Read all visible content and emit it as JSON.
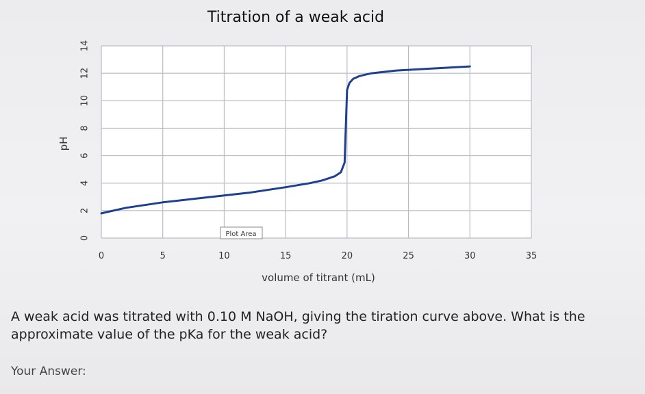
{
  "chart_data": {
    "type": "line",
    "title": "Titration of a weak acid",
    "xlabel": "volume of titrant (mL)",
    "ylabel": "pH",
    "xlim": [
      0,
      35
    ],
    "ylim": [
      0,
      14
    ],
    "xticks": [
      "0",
      "5",
      "10",
      "15",
      "20",
      "25",
      "30",
      "35"
    ],
    "yticks": [
      "0",
      "2",
      "4",
      "6",
      "8",
      "10",
      "12",
      "14"
    ],
    "grid": true,
    "series_color": "#1f3f8f",
    "plot_area_label": "Plot Area",
    "x": [
      0,
      2,
      5,
      8,
      10,
      12,
      15,
      17,
      18,
      19,
      19.5,
      19.8,
      20,
      20.2,
      20.5,
      21,
      22,
      24,
      26,
      28,
      30
    ],
    "y": [
      1.8,
      2.2,
      2.6,
      2.9,
      3.1,
      3.3,
      3.7,
      4.0,
      4.2,
      4.5,
      4.8,
      5.5,
      10.8,
      11.3,
      11.6,
      11.8,
      12.0,
      12.2,
      12.3,
      12.4,
      12.5
    ]
  },
  "question": {
    "text": "A weak acid was titrated with 0.10 M NaOH, giving the tiration curve above. What is the approximate value of the pKa for the weak acid?"
  },
  "answer": {
    "label": "Your Answer:"
  }
}
